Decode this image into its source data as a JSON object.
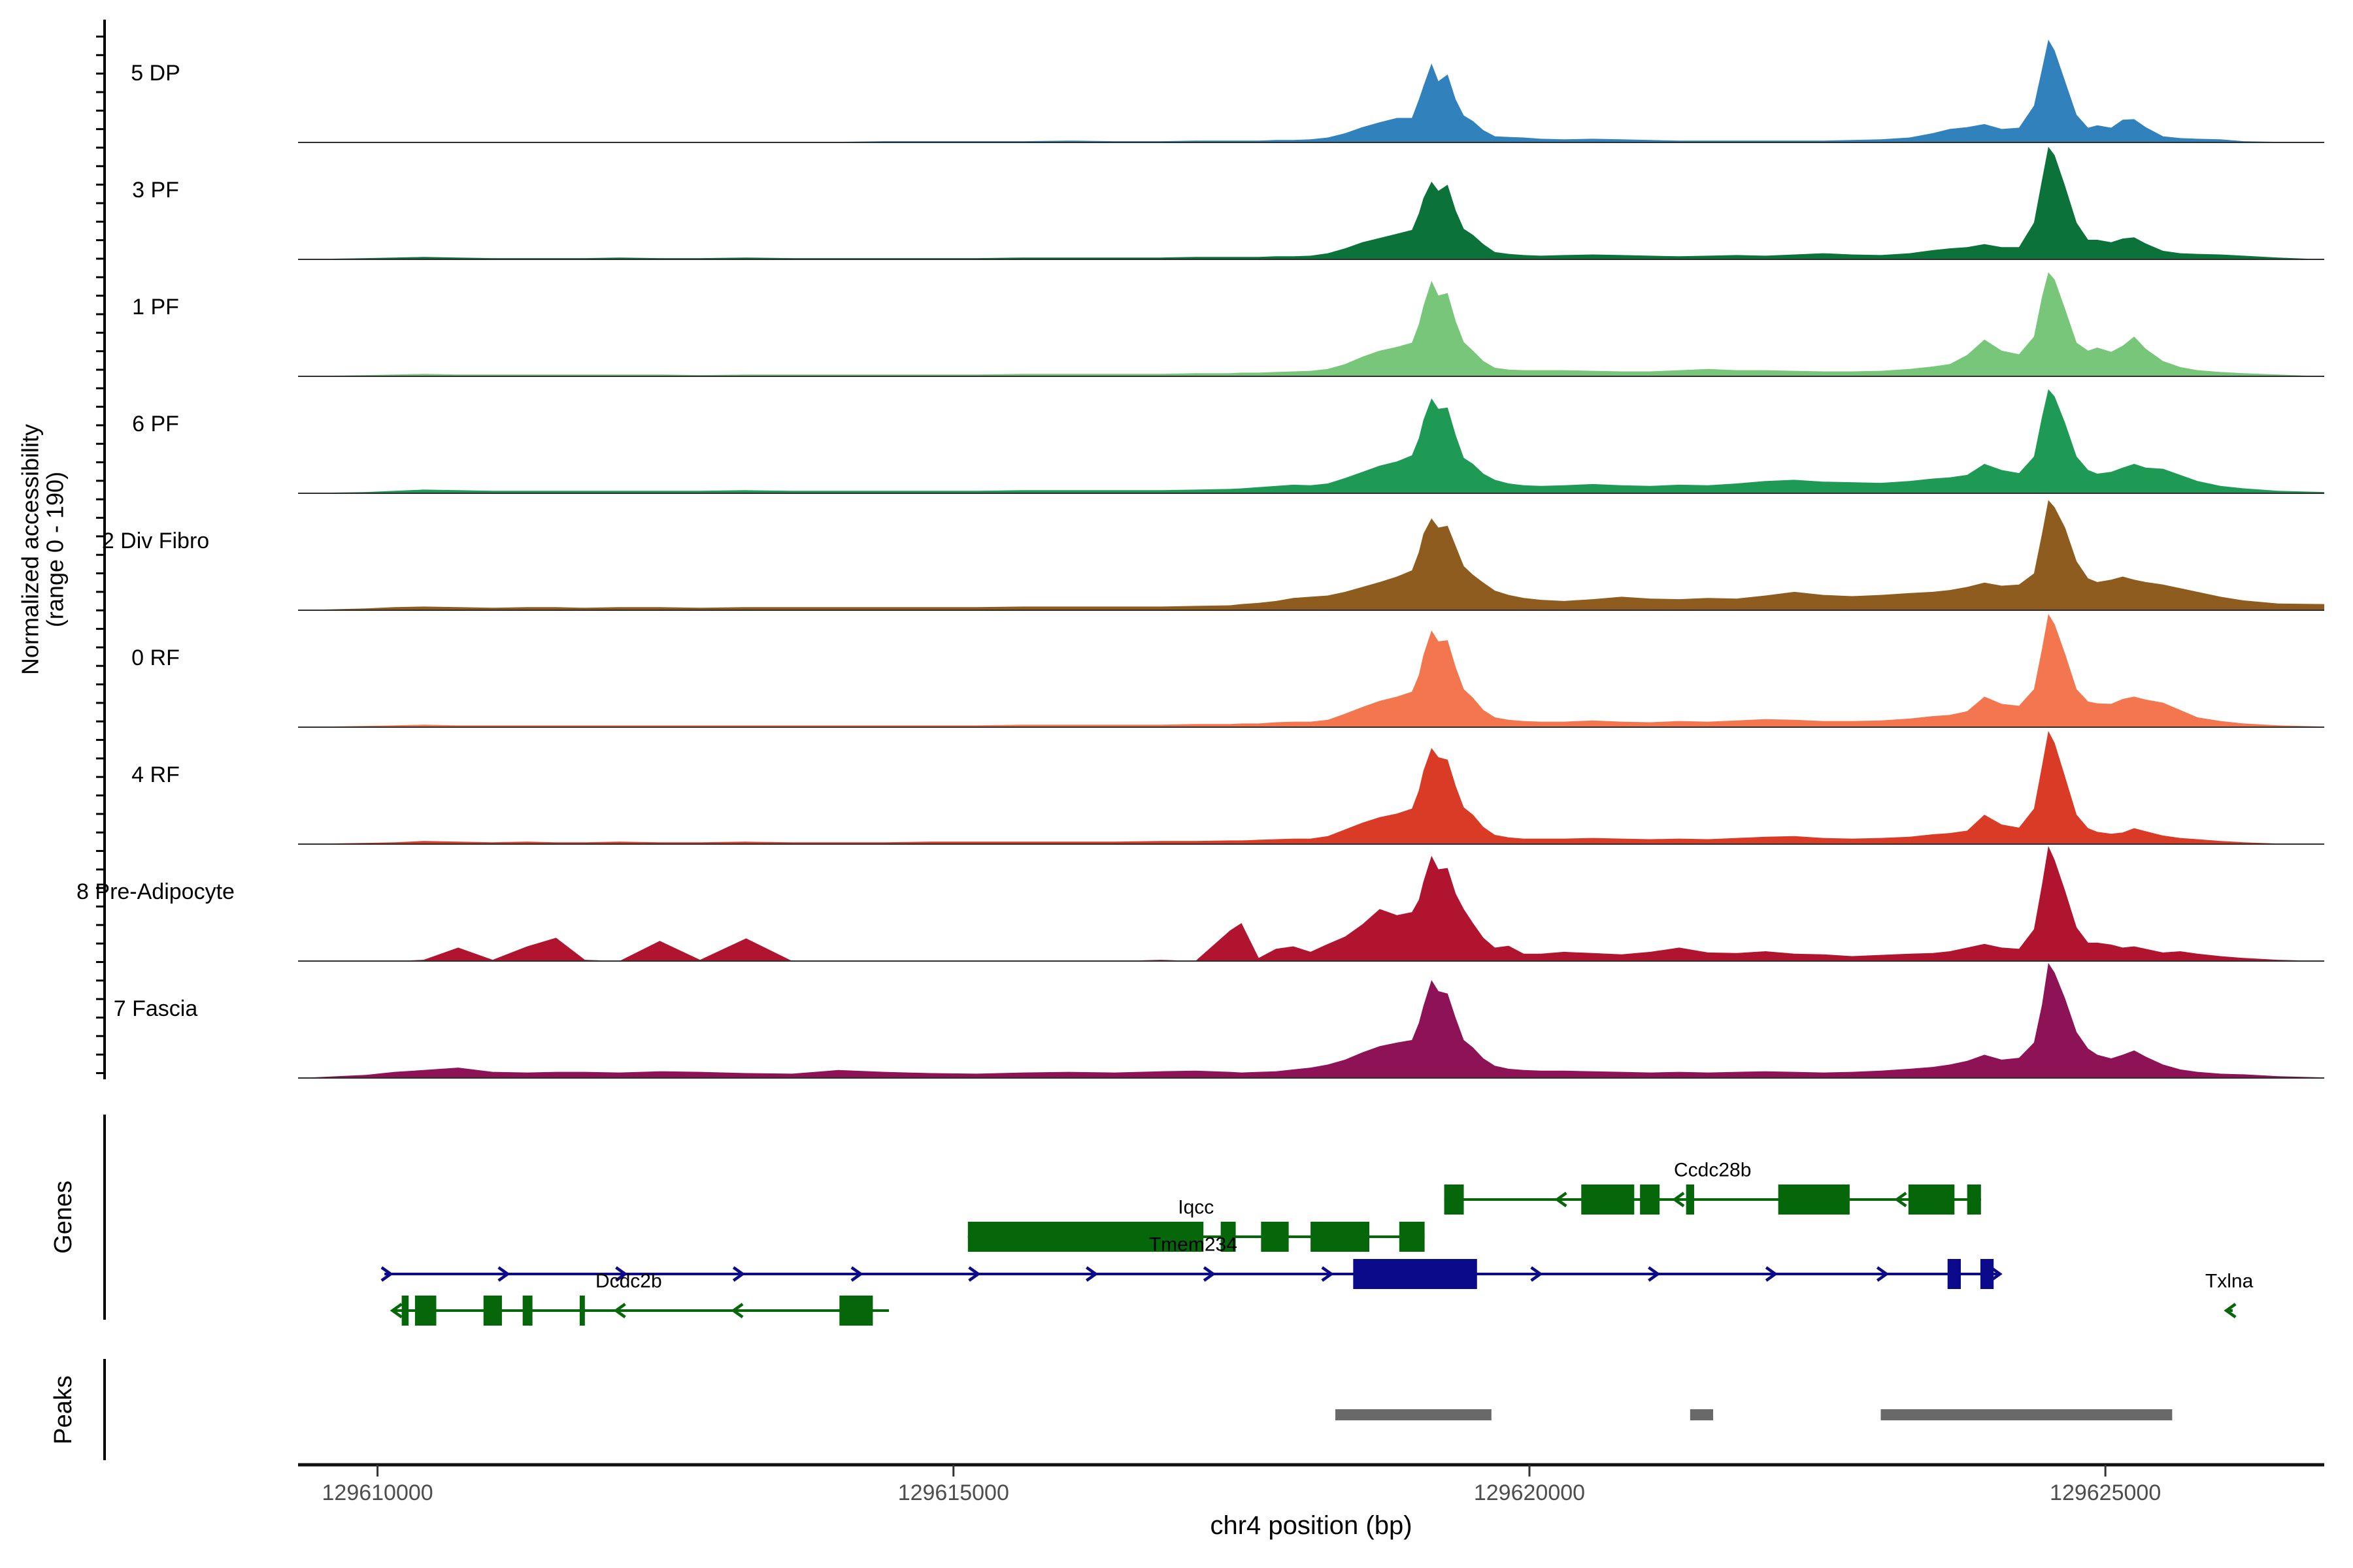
{
  "chart_data": {
    "type": "area",
    "title": "",
    "xlabel": "chr4 position (bp)",
    "ylabel_line1": "Normalized accessibility",
    "ylabel_line2": "(range 0 - 190)",
    "y_range": [
      0,
      190
    ],
    "x_axis": {
      "region_start_bp": 129609310,
      "region_end_bp": 129626900,
      "ticks_bp": [
        129610000,
        129615000,
        129620000,
        129625000
      ],
      "tick_labels": [
        "129610000",
        "129615000",
        "129620000",
        "129625000"
      ]
    },
    "x_bp": [
      129609310,
      129609900,
      129610150,
      129610400,
      129610700,
      129611000,
      129611300,
      129611550,
      129611800,
      129612100,
      129612450,
      129612800,
      129613200,
      129613600,
      129614000,
      129614400,
      129614800,
      129615200,
      129615600,
      129616000,
      129616400,
      129616800,
      129617100,
      129617400,
      129617500,
      129617650,
      129617800,
      129617950,
      129618100,
      129618250,
      129618400,
      129618550,
      129618700,
      129618850,
      129618980,
      129619040,
      129619080,
      129619150,
      129619210,
      129619290,
      129619360,
      129619430,
      129619510,
      129619600,
      129619700,
      129619820,
      129619950,
      129620100,
      129620300,
      129620550,
      129620800,
      129621050,
      129621300,
      129621550,
      129621800,
      129622050,
      129622300,
      129622550,
      129622800,
      129623050,
      129623300,
      129623500,
      129623650,
      129623800,
      129623950,
      129624100,
      129624250,
      129624380,
      129624450,
      129624505,
      129624560,
      129624650,
      129624750,
      129624850,
      129624930,
      129625050,
      129625150,
      129625250,
      129625350,
      129625500,
      129625650,
      129625800,
      129626000,
      129626200,
      129626500,
      129626900
    ],
    "tracks": [
      {
        "label": "5 DP",
        "color": "#3181BD",
        "values": [
          0,
          1,
          1,
          1,
          1,
          1,
          1,
          1,
          1,
          1,
          1,
          1,
          1,
          1,
          1,
          2,
          2,
          2,
          2,
          3,
          2,
          2,
          3,
          3,
          3,
          3,
          4,
          4,
          5,
          8,
          15,
          25,
          33,
          40,
          40,
          70,
          92,
          129,
          100,
          111,
          70,
          44,
          35,
          20,
          10,
          9,
          8,
          6,
          5,
          6,
          5,
          4,
          3,
          3,
          3,
          3,
          3,
          3,
          4,
          5,
          8,
          15,
          22,
          25,
          30,
          22,
          24,
          60,
          120,
          168,
          150,
          100,
          45,
          24,
          28,
          24,
          37,
          38,
          25,
          10,
          7,
          6,
          5,
          2,
          1,
          0
        ]
      },
      {
        "label": "3 PF",
        "color": "#0B7239",
        "values": [
          0,
          2,
          3,
          4,
          3,
          2,
          2,
          2,
          2,
          3,
          2,
          2,
          3,
          2,
          2,
          2,
          2,
          2,
          3,
          3,
          3,
          3,
          4,
          4,
          4,
          4,
          5,
          5,
          6,
          10,
          18,
          28,
          35,
          42,
          48,
          75,
          100,
          127,
          112,
          122,
          80,
          50,
          40,
          25,
          12,
          9,
          7,
          6,
          7,
          8,
          7,
          6,
          5,
          6,
          7,
          6,
          8,
          10,
          8,
          7,
          10,
          15,
          18,
          20,
          25,
          20,
          20,
          60,
          130,
          184,
          170,
          120,
          60,
          32,
          32,
          28,
          34,
          36,
          26,
          14,
          10,
          9,
          8,
          6,
          3,
          0
        ]
      },
      {
        "label": "1 PF",
        "color": "#77C679",
        "values": [
          0,
          2,
          3,
          4,
          3,
          3,
          3,
          3,
          3,
          3,
          3,
          2,
          3,
          3,
          3,
          3,
          3,
          3,
          4,
          4,
          4,
          4,
          5,
          5,
          6,
          6,
          7,
          8,
          9,
          12,
          20,
          32,
          42,
          48,
          55,
          85,
          115,
          156,
          132,
          136,
          90,
          56,
          42,
          25,
          14,
          11,
          10,
          10,
          10,
          9,
          8,
          8,
          10,
          12,
          10,
          10,
          9,
          8,
          8,
          9,
          12,
          16,
          20,
          35,
          60,
          42,
          36,
          65,
          130,
          170,
          158,
          110,
          55,
          42,
          47,
          40,
          50,
          65,
          45,
          25,
          15,
          10,
          7,
          5,
          3,
          0
        ]
      },
      {
        "label": "6 PF",
        "color": "#1F9A55",
        "values": [
          0,
          2,
          4,
          6,
          5,
          4,
          4,
          4,
          4,
          4,
          4,
          4,
          5,
          4,
          4,
          4,
          4,
          4,
          5,
          5,
          5,
          5,
          6,
          7,
          8,
          10,
          12,
          14,
          13,
          16,
          25,
          35,
          45,
          52,
          62,
          90,
          120,
          155,
          138,
          140,
          95,
          58,
          48,
          32,
          22,
          16,
          13,
          12,
          13,
          15,
          13,
          12,
          14,
          13,
          16,
          20,
          22,
          19,
          18,
          17,
          20,
          24,
          26,
          30,
          48,
          38,
          33,
          60,
          125,
          170,
          158,
          115,
          60,
          38,
          32,
          35,
          42,
          48,
          42,
          40,
          30,
          20,
          12,
          8,
          4,
          2
        ]
      },
      {
        "label": "2 Div Fibro",
        "color": "#8D5C1E",
        "values": [
          0,
          3,
          5,
          6,
          5,
          4,
          5,
          5,
          4,
          5,
          5,
          4,
          5,
          5,
          5,
          5,
          5,
          5,
          6,
          6,
          6,
          6,
          7,
          8,
          10,
          12,
          15,
          20,
          22,
          24,
          30,
          38,
          46,
          55,
          65,
          95,
          125,
          150,
          135,
          138,
          105,
          72,
          58,
          45,
          32,
          25,
          20,
          17,
          15,
          18,
          22,
          19,
          18,
          20,
          19,
          24,
          30,
          25,
          23,
          25,
          28,
          30,
          33,
          38,
          45,
          40,
          42,
          60,
          125,
          180,
          168,
          135,
          80,
          52,
          46,
          50,
          55,
          50,
          46,
          42,
          36,
          30,
          22,
          16,
          11,
          10
        ]
      },
      {
        "label": "0 RF",
        "color": "#F3764E",
        "values": [
          0,
          2,
          3,
          4,
          3,
          3,
          3,
          3,
          3,
          3,
          3,
          3,
          3,
          3,
          3,
          3,
          3,
          3,
          4,
          4,
          4,
          4,
          5,
          5,
          6,
          6,
          8,
          9,
          9,
          12,
          22,
          33,
          43,
          50,
          58,
          85,
          118,
          158,
          140,
          142,
          98,
          62,
          48,
          28,
          16,
          12,
          10,
          9,
          9,
          11,
          9,
          8,
          10,
          9,
          11,
          13,
          12,
          10,
          10,
          11,
          14,
          18,
          20,
          26,
          50,
          38,
          35,
          62,
          128,
          185,
          168,
          120,
          62,
          42,
          39,
          38,
          46,
          50,
          45,
          40,
          28,
          16,
          10,
          6,
          3,
          1
        ]
      },
      {
        "label": "4 RF",
        "color": "#D93B27",
        "values": [
          0,
          2,
          3,
          5,
          4,
          3,
          4,
          3,
          3,
          4,
          3,
          3,
          4,
          3,
          3,
          3,
          4,
          4,
          4,
          4,
          4,
          5,
          5,
          6,
          6,
          7,
          8,
          9,
          9,
          13,
          24,
          35,
          44,
          50,
          58,
          88,
          120,
          157,
          142,
          138,
          95,
          60,
          48,
          28,
          15,
          11,
          9,
          9,
          9,
          10,
          9,
          8,
          9,
          8,
          10,
          12,
          13,
          10,
          9,
          10,
          12,
          16,
          18,
          22,
          48,
          32,
          27,
          58,
          128,
          185,
          165,
          110,
          48,
          26,
          20,
          17,
          19,
          26,
          21,
          14,
          10,
          8,
          5,
          3,
          1,
          0
        ]
      },
      {
        "label": "8 Pre-Adipocyte",
        "color": "#B0142F",
        "values": [
          0,
          0,
          0,
          2,
          22,
          2,
          24,
          38,
          2,
          0,
          33,
          2,
          37,
          0,
          0,
          0,
          0,
          0,
          0,
          0,
          0,
          2,
          0,
          50,
          62,
          5,
          20,
          24,
          15,
          28,
          40,
          60,
          85,
          75,
          80,
          100,
          130,
          172,
          150,
          152,
          110,
          85,
          62,
          38,
          22,
          25,
          12,
          12,
          15,
          13,
          11,
          15,
          22,
          14,
          13,
          16,
          12,
          11,
          8,
          10,
          12,
          13,
          16,
          22,
          28,
          22,
          20,
          52,
          125,
          188,
          165,
          115,
          55,
          30,
          30,
          27,
          22,
          24,
          20,
          14,
          16,
          12,
          8,
          5,
          2,
          0
        ]
      },
      {
        "label": "7 Fascia",
        "color": "#8E1256",
        "values": [
          0,
          5,
          10,
          13,
          17,
          10,
          9,
          10,
          10,
          9,
          11,
          10,
          8,
          7,
          13,
          10,
          8,
          7,
          9,
          10,
          9,
          11,
          12,
          10,
          9,
          10,
          11,
          14,
          17,
          22,
          30,
          42,
          52,
          58,
          62,
          90,
          118,
          160,
          142,
          138,
          98,
          62,
          50,
          32,
          20,
          15,
          13,
          12,
          12,
          11,
          10,
          9,
          10,
          9,
          10,
          11,
          10,
          9,
          10,
          12,
          15,
          18,
          22,
          28,
          38,
          30,
          33,
          58,
          120,
          188,
          172,
          130,
          75,
          48,
          38,
          32,
          38,
          45,
          35,
          22,
          14,
          10,
          7,
          6,
          3,
          1
        ]
      }
    ],
    "genes_panel": {
      "label": "Genes",
      "genes": [
        {
          "name": "Ccdc28b",
          "strand": "-",
          "color": "#05660A",
          "row": 0,
          "start_bp": 129619260,
          "end_bp": 129623920,
          "label_bp": 129621590,
          "exons_bp": [
            [
              129619260,
              129619430
            ],
            [
              129620450,
              129620910
            ],
            [
              129620960,
              129621130
            ],
            [
              129621360,
              129621430
            ],
            [
              129622160,
              129622780
            ],
            [
              129623290,
              129623690
            ],
            [
              129623800,
              129623920
            ]
          ],
          "arrows_bp": [
            129620280,
            129621300,
            129623230
          ]
        },
        {
          "name": "Iqcc",
          "strand": "-",
          "color": "#05660A",
          "row": 1,
          "start_bp": 129615125,
          "end_bp": 129619090,
          "label_bp": 129617105,
          "exons_bp": [
            [
              129615125,
              129617170
            ],
            [
              129617320,
              129617450
            ],
            [
              129617670,
              129617910
            ],
            [
              129618100,
              129618610
            ],
            [
              129618870,
              129619090
            ]
          ],
          "arrows_bp": []
        },
        {
          "name": "Tmem234",
          "strand": "+",
          "color": "#0A0A8B",
          "row": 2,
          "start_bp": 129610060,
          "end_bp": 129624060,
          "label_bp": 129617080,
          "exons_bp": [
            [
              129618470,
              129619545
            ],
            [
              129623630,
              129623745
            ],
            [
              129623915,
              129624030
            ]
          ],
          "arrows_bp": [
            129610075,
            129611090,
            129612110,
            129613130,
            129614155,
            129615175,
            129616195,
            129617215,
            129618240,
            129620055,
            129621075,
            129622095,
            129623060,
            129624045
          ]
        },
        {
          "name": "Dcdc2b",
          "strand": "-",
          "color": "#05660A",
          "row": 3,
          "start_bp": 129610130,
          "end_bp": 129614440,
          "label_bp": 129612180,
          "exons_bp": [
            [
              129610210,
              129610270
            ],
            [
              129610325,
              129610510
            ],
            [
              129610920,
              129611080
            ],
            [
              129611260,
              129611345
            ],
            [
              129611755,
              129611800
            ],
            [
              129614010,
              129614300
            ]
          ],
          "arrows_bp": [
            129610170,
            129612110,
            129613130
          ]
        },
        {
          "name": "Txlna",
          "strand": "-",
          "color": "#05660A",
          "row": 3,
          "start_bp": 129626075,
          "end_bp": 129626105,
          "label_bp": 129626075,
          "exons_bp": [],
          "arrows_bp": [
            129626090
          ]
        }
      ]
    },
    "peaks_panel": {
      "label": "Peaks",
      "color": "#696969",
      "peaks_bp": [
        [
          129618315,
          129619670
        ],
        [
          129621395,
          129621595
        ],
        [
          129623050,
          129625580
        ]
      ]
    }
  }
}
